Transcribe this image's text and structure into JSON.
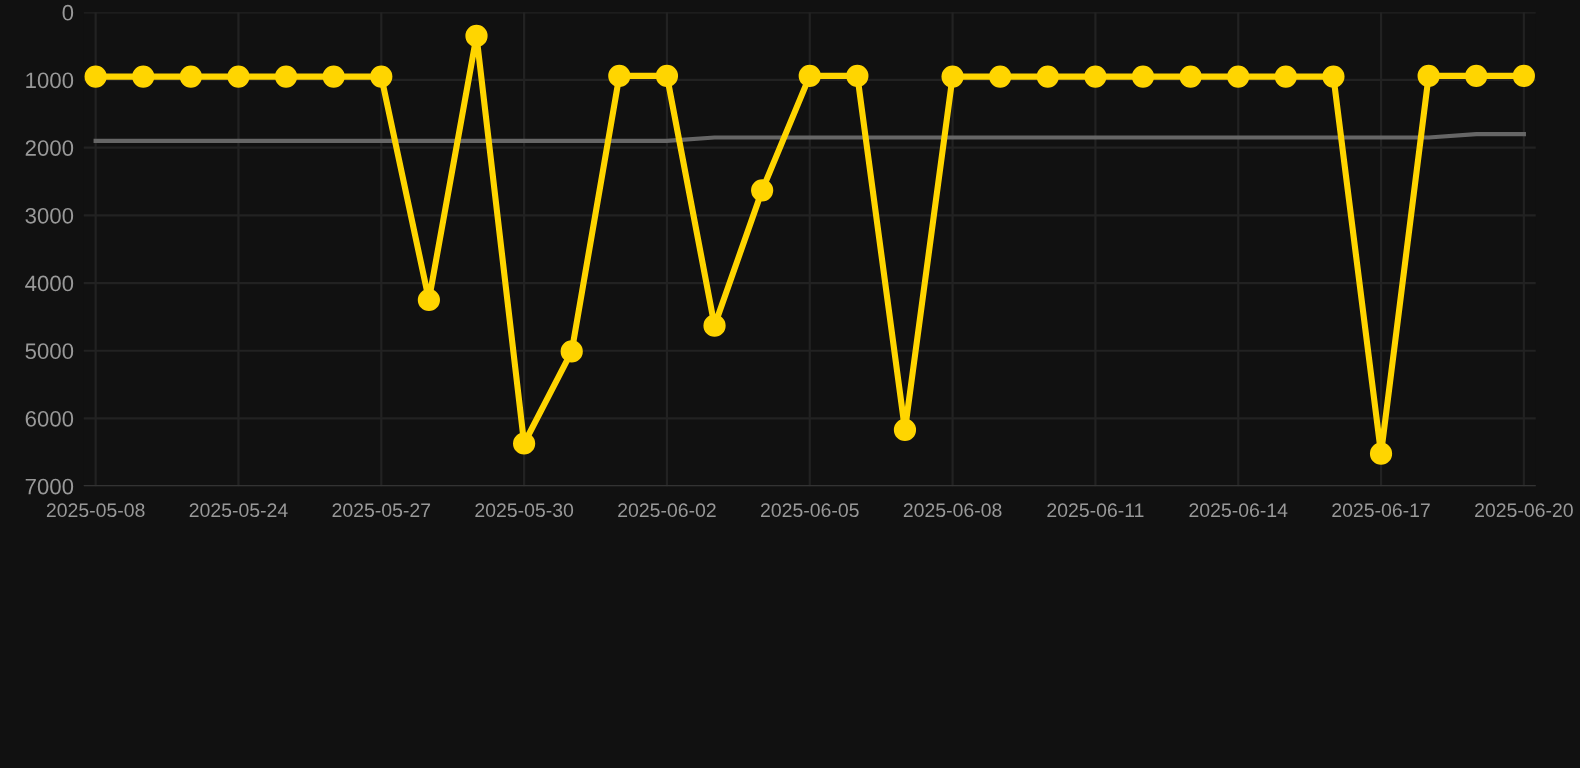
{
  "chart_data": {
    "type": "line",
    "categories": [
      "2025-05-08",
      null,
      null,
      "2025-05-24",
      null,
      null,
      "2025-05-27",
      null,
      null,
      "2025-05-30",
      null,
      null,
      "2025-06-02",
      null,
      null,
      "2025-06-05",
      null,
      null,
      "2025-06-08",
      null,
      null,
      "2025-06-11",
      null,
      null,
      "2025-06-14",
      null,
      null,
      "2025-06-17",
      null,
      null,
      "2025-06-20"
    ],
    "series": [
      {
        "color": "#ffd500",
        "marker": "circle",
        "values": [
          950,
          950,
          950,
          950,
          950,
          950,
          950,
          4250,
          350,
          6370,
          5010,
          940,
          940,
          4630,
          2630,
          940,
          940,
          6170,
          950,
          950,
          950,
          950,
          950,
          950,
          950,
          950,
          950,
          6520,
          940,
          940,
          940
        ]
      },
      {
        "color": "#666666",
        "marker": "none",
        "values": [
          1900,
          1900,
          1900,
          1900,
          1900,
          1900,
          1900,
          1900,
          1900,
          1900,
          1900,
          1900,
          1900,
          1850,
          1850,
          1850,
          1850,
          1850,
          1850,
          1850,
          1850,
          1850,
          1850,
          1850,
          1850,
          1850,
          1850,
          1850,
          1850,
          1800,
          1800
        ]
      }
    ],
    "ylim": [
      7000,
      0
    ],
    "yticks": [
      0,
      1000,
      2000,
      3000,
      4000,
      5000,
      6000,
      7000
    ],
    "grid": true,
    "line_style": "solid"
  }
}
